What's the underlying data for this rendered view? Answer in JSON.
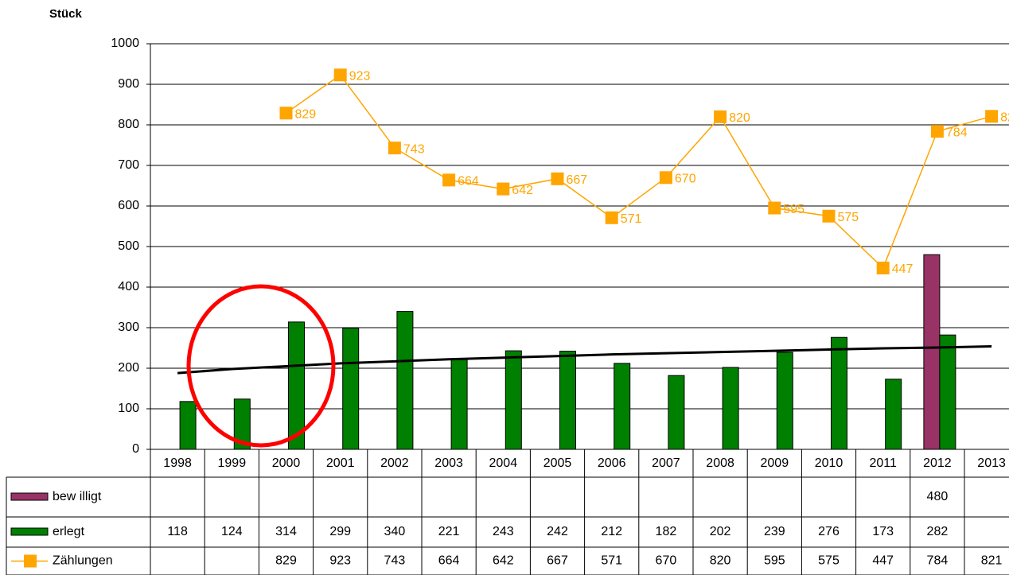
{
  "chart_data": {
    "type": "bar",
    "y_axis_label": "Stück",
    "categories": [
      "1998",
      "1999",
      "2000",
      "2001",
      "2002",
      "2003",
      "2004",
      "2005",
      "2006",
      "2007",
      "2008",
      "2009",
      "2010",
      "2011",
      "2012",
      "2013"
    ],
    "series": [
      {
        "name": "bew illigt",
        "type": "bar",
        "color": "#993366",
        "values": [
          null,
          null,
          null,
          null,
          null,
          null,
          null,
          null,
          null,
          null,
          null,
          null,
          null,
          null,
          480,
          null
        ]
      },
      {
        "name": "erlegt",
        "type": "bar",
        "color": "#008000",
        "values": [
          118,
          124,
          314,
          299,
          340,
          221,
          243,
          242,
          212,
          182,
          202,
          239,
          276,
          173,
          282,
          null
        ]
      },
      {
        "name": "Zählungen",
        "type": "line",
        "color": "#ffa500",
        "values": [
          null,
          null,
          829,
          923,
          743,
          664,
          642,
          667,
          571,
          670,
          820,
          595,
          575,
          447,
          784,
          821
        ]
      }
    ],
    "trendline": {
      "color": "#000000",
      "values": [
        188,
        198,
        205,
        212,
        217,
        222,
        226,
        230,
        234,
        237,
        240,
        243,
        246,
        249,
        251,
        254
      ]
    },
    "ylim": [
      0,
      1000
    ],
    "yticks": [
      0,
      100,
      200,
      300,
      400,
      500,
      600,
      700,
      800,
      900,
      1000
    ],
    "grid": true
  }
}
